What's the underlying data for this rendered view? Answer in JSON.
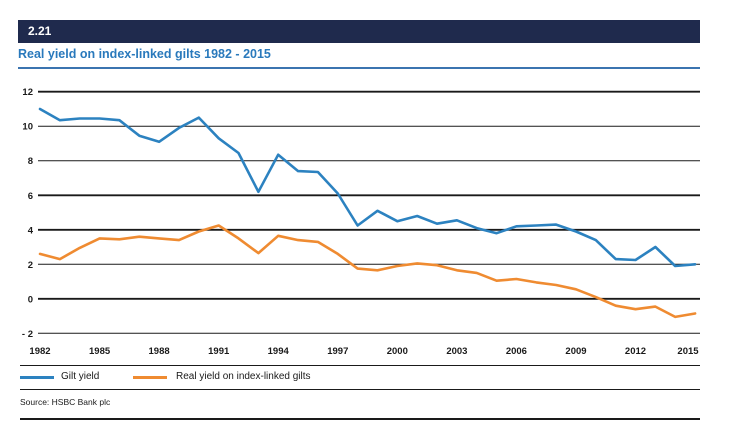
{
  "header": {
    "badge": "2.21",
    "title": "Real yield on index-linked gilts 1982 - 2015"
  },
  "source": "Source: HSBC Bank plc",
  "legend": [
    {
      "label": "Gilt yield",
      "color": "#2c82c0"
    },
    {
      "label": "Real yield on index-linked gilts",
      "color": "#ef8b31"
    }
  ],
  "colors": {
    "header_bar": "#1f2a4d",
    "title": "#2979bc",
    "title_rule": "#3b74b0",
    "gilt_line": "#2c82c0",
    "real_line": "#ef8b31",
    "grid": "#1a1a1a"
  },
  "chart_data": {
    "type": "line",
    "title": "Real yield on index-linked gilts 1982 - 2015",
    "xlabel": "",
    "ylabel": "",
    "xlim": [
      1982,
      2015
    ],
    "ylim": [
      -2,
      12
    ],
    "grid": "horizontal",
    "legend_position": "bottom",
    "x": [
      1982,
      1983,
      1984,
      1985,
      1986,
      1987,
      1988,
      1989,
      1990,
      1991,
      1992,
      1993,
      1994,
      1995,
      1996,
      1997,
      1998,
      1999,
      2000,
      2001,
      2002,
      2003,
      2004,
      2005,
      2006,
      2007,
      2008,
      2009,
      2010,
      2011,
      2012,
      2013,
      2014,
      2015
    ],
    "xticks": [
      1982,
      1985,
      1988,
      1991,
      1994,
      1997,
      2000,
      2003,
      2006,
      2009,
      2012,
      2015
    ],
    "yticks": [
      12,
      10,
      8,
      6,
      4,
      2,
      0,
      -2
    ],
    "ytick_labels": [
      "12",
      "10",
      "8",
      "6",
      "4",
      "2",
      "0",
      "- 2"
    ],
    "series": [
      {
        "name": "Gilt yield",
        "color": "#2c82c0",
        "values": [
          11.0,
          10.35,
          10.45,
          10.45,
          10.35,
          9.45,
          9.1,
          9.9,
          10.5,
          9.3,
          8.45,
          6.2,
          8.35,
          7.4,
          7.35,
          6.1,
          4.25,
          5.1,
          4.5,
          4.8,
          4.35,
          4.55,
          4.1,
          3.8,
          4.2,
          4.25,
          4.3,
          3.9,
          3.4,
          2.3,
          2.25,
          3.0,
          1.9,
          2.0
        ]
      },
      {
        "name": "Real yield on index-linked gilts",
        "color": "#ef8b31",
        "values": [
          2.6,
          2.3,
          2.95,
          3.5,
          3.45,
          3.6,
          3.5,
          3.4,
          3.9,
          4.25,
          3.5,
          2.65,
          3.65,
          3.4,
          3.3,
          2.6,
          1.75,
          1.65,
          1.9,
          2.05,
          1.95,
          1.65,
          1.5,
          1.05,
          1.15,
          0.95,
          0.8,
          0.55,
          0.1,
          -0.4,
          -0.6,
          -0.45,
          -1.05,
          -0.85
        ]
      }
    ]
  }
}
